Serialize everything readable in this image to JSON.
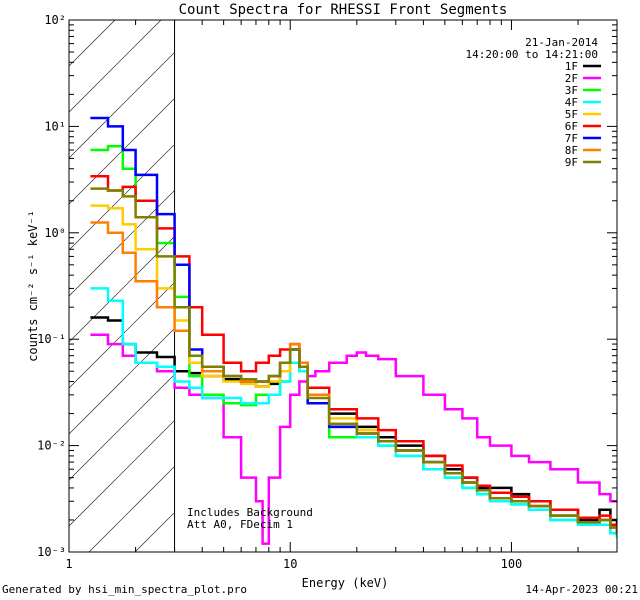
{
  "chart_data": {
    "type": "line",
    "title": "Count Spectra for RHESSI Front Segments",
    "xlabel": "Energy (keV)",
    "ylabel": "counts cm⁻² s⁻¹ keV⁻¹",
    "xscale": "log",
    "yscale": "log",
    "xlim": [
      1,
      300
    ],
    "ylim": [
      0.001,
      100
    ],
    "x_ticks": [
      {
        "value": 1,
        "label": "1"
      },
      {
        "value": 10,
        "label": "10"
      },
      {
        "value": 100,
        "label": "100"
      }
    ],
    "y_ticks": [
      {
        "value": 0.001,
        "label": "10⁻³"
      },
      {
        "value": 0.01,
        "label": "10⁻²"
      },
      {
        "value": 0.1,
        "label": "10⁻¹"
      },
      {
        "value": 1,
        "label": "10⁰"
      },
      {
        "value": 10,
        "label": "10¹"
      },
      {
        "value": 100,
        "label": "10²"
      }
    ],
    "date": "21-Jan-2014",
    "time_range": "14:20:00 to 14:21:00",
    "hatched_region_max_kev": 3,
    "annotation_lines": [
      "Includes Background",
      "Att A0, FDecim 1"
    ],
    "legend_position": "top-right",
    "series": [
      {
        "name": "1F",
        "color": "#000000",
        "x": [
          1.25,
          1.5,
          1.75,
          2,
          2.5,
          3,
          3.5,
          4,
          5,
          6,
          7,
          8,
          9,
          10,
          11,
          12,
          15,
          20,
          25,
          30,
          40,
          50,
          60,
          70,
          80,
          100,
          120,
          150,
          200,
          250,
          280,
          300
        ],
        "y": [
          0.16,
          0.15,
          0.09,
          0.075,
          0.068,
          0.05,
          0.048,
          0.045,
          0.042,
          0.04,
          0.036,
          0.038,
          0.05,
          0.08,
          0.055,
          0.03,
          0.02,
          0.015,
          0.012,
          0.01,
          0.008,
          0.006,
          0.005,
          0.004,
          0.004,
          0.0035,
          0.003,
          0.0025,
          0.002,
          0.0025,
          0.002,
          0.0015
        ]
      },
      {
        "name": "2F",
        "color": "#ff00ff",
        "x": [
          1.25,
          1.5,
          1.75,
          2,
          2.5,
          3,
          3.5,
          4,
          5,
          6,
          7,
          7.5,
          8,
          9,
          10,
          11,
          12,
          13,
          15,
          18,
          20,
          22,
          25,
          30,
          40,
          50,
          60,
          70,
          80,
          100,
          120,
          150,
          200,
          250,
          280,
          300
        ],
        "y": [
          0.11,
          0.09,
          0.07,
          0.06,
          0.05,
          0.035,
          0.03,
          0.028,
          0.012,
          0.005,
          0.003,
          0.0012,
          0.005,
          0.015,
          0.03,
          0.04,
          0.045,
          0.05,
          0.06,
          0.07,
          0.075,
          0.07,
          0.065,
          0.045,
          0.03,
          0.022,
          0.018,
          0.012,
          0.01,
          0.008,
          0.007,
          0.006,
          0.0045,
          0.0035,
          0.003,
          0.003
        ]
      },
      {
        "name": "3F",
        "color": "#00ff00",
        "x": [
          1.25,
          1.5,
          1.75,
          2,
          2.5,
          3,
          3.5,
          4,
          5,
          6,
          7,
          8,
          9,
          10,
          11,
          12,
          15,
          20,
          25,
          30,
          40,
          50,
          60,
          70,
          80,
          100,
          120,
          150,
          200,
          250,
          280,
          300
        ],
        "y": [
          6,
          6.5,
          4,
          2,
          0.8,
          0.25,
          0.045,
          0.03,
          0.025,
          0.024,
          0.03,
          0.03,
          0.04,
          0.06,
          0.05,
          0.025,
          0.012,
          0.012,
          0.01,
          0.008,
          0.006,
          0.005,
          0.004,
          0.0035,
          0.003,
          0.0028,
          0.0025,
          0.002,
          0.0018,
          0.0018,
          0.0015,
          0.0014
        ]
      },
      {
        "name": "4F",
        "color": "#00ffff",
        "x": [
          1.25,
          1.5,
          1.75,
          2,
          2.5,
          3,
          3.5,
          4,
          5,
          6,
          7,
          8,
          9,
          10,
          11,
          12,
          15,
          20,
          25,
          30,
          40,
          50,
          60,
          70,
          80,
          100,
          120,
          150,
          200,
          250,
          280,
          300
        ],
        "y": [
          0.3,
          0.23,
          0.09,
          0.06,
          0.055,
          0.04,
          0.035,
          0.028,
          0.028,
          0.025,
          0.025,
          0.03,
          0.04,
          0.06,
          0.05,
          0.025,
          0.015,
          0.012,
          0.01,
          0.008,
          0.006,
          0.005,
          0.004,
          0.0035,
          0.003,
          0.0028,
          0.0025,
          0.002,
          0.0018,
          0.0018,
          0.0015,
          0.0014
        ]
      },
      {
        "name": "5F",
        "color": "#ffcc00",
        "x": [
          1.25,
          1.5,
          1.75,
          2,
          2.5,
          3,
          3.5,
          4,
          5,
          6,
          7,
          8,
          9,
          10,
          11,
          12,
          15,
          20,
          25,
          30,
          40,
          50,
          60,
          70,
          80,
          100,
          120,
          150,
          200,
          250,
          280,
          300
        ],
        "y": [
          1.8,
          1.7,
          1.2,
          0.7,
          0.3,
          0.15,
          0.06,
          0.045,
          0.04,
          0.038,
          0.036,
          0.04,
          0.05,
          0.08,
          0.055,
          0.03,
          0.018,
          0.014,
          0.011,
          0.009,
          0.007,
          0.0055,
          0.0045,
          0.0038,
          0.0032,
          0.003,
          0.0027,
          0.0022,
          0.0019,
          0.002,
          0.0017,
          0.0015
        ]
      },
      {
        "name": "6F",
        "color": "#ff0000",
        "x": [
          1.25,
          1.5,
          1.75,
          2,
          2.5,
          3,
          3.5,
          4,
          5,
          6,
          7,
          8,
          9,
          10,
          11,
          12,
          15,
          20,
          25,
          30,
          40,
          50,
          60,
          70,
          80,
          100,
          120,
          150,
          200,
          250,
          280,
          300
        ],
        "y": [
          3.4,
          2.5,
          2.7,
          2,
          1.1,
          0.6,
          0.2,
          0.11,
          0.06,
          0.05,
          0.06,
          0.07,
          0.08,
          0.09,
          0.06,
          0.035,
          0.022,
          0.018,
          0.014,
          0.011,
          0.008,
          0.0065,
          0.005,
          0.0042,
          0.0036,
          0.0033,
          0.003,
          0.0025,
          0.0021,
          0.0022,
          0.0018,
          0.0016
        ]
      },
      {
        "name": "7F",
        "color": "#0000ff",
        "x": [
          1.25,
          1.5,
          1.75,
          2,
          2.5,
          3,
          3.5,
          4,
          5,
          6,
          7,
          8,
          9,
          10,
          11,
          12,
          15,
          20,
          25,
          30,
          40,
          50,
          60,
          70,
          80,
          100,
          120,
          150,
          200,
          250,
          280,
          300
        ],
        "y": [
          12,
          10,
          6,
          3.5,
          1.5,
          0.5,
          0.08,
          0.055,
          0.045,
          0.04,
          0.04,
          0.045,
          0.06,
          0.08,
          0.055,
          0.025,
          0.015,
          0.013,
          0.011,
          0.009,
          0.007,
          0.0055,
          0.0045,
          0.0038,
          0.0032,
          0.003,
          0.0027,
          0.0022,
          0.0019,
          0.002,
          0.0017,
          0.0015
        ]
      },
      {
        "name": "8F",
        "color": "#ff7f00",
        "x": [
          1.25,
          1.5,
          1.75,
          2,
          2.5,
          3,
          3.5,
          4,
          5,
          6,
          7,
          8,
          9,
          10,
          11,
          12,
          15,
          20,
          25,
          30,
          40,
          50,
          60,
          70,
          80,
          100,
          120,
          150,
          200,
          250,
          280,
          300
        ],
        "y": [
          1.25,
          1,
          0.65,
          0.35,
          0.2,
          0.12,
          0.07,
          0.05,
          0.045,
          0.04,
          0.04,
          0.045,
          0.06,
          0.09,
          0.06,
          0.03,
          0.016,
          0.013,
          0.011,
          0.009,
          0.007,
          0.0055,
          0.0045,
          0.0038,
          0.0032,
          0.003,
          0.0027,
          0.0022,
          0.0019,
          0.002,
          0.0017,
          0.0015
        ]
      },
      {
        "name": "9F",
        "color": "#808000",
        "x": [
          1.25,
          1.5,
          1.75,
          2,
          2.5,
          3,
          3.5,
          4,
          5,
          6,
          7,
          8,
          9,
          10,
          11,
          12,
          15,
          20,
          25,
          30,
          40,
          50,
          60,
          70,
          80,
          100,
          120,
          150,
          200,
          250,
          280,
          300
        ],
        "y": [
          2.6,
          2.5,
          2.2,
          1.4,
          0.6,
          0.2,
          0.07,
          0.055,
          0.045,
          0.042,
          0.04,
          0.045,
          0.06,
          0.08,
          0.055,
          0.028,
          0.016,
          0.013,
          0.011,
          0.009,
          0.007,
          0.0055,
          0.0045,
          0.0038,
          0.0032,
          0.003,
          0.0027,
          0.0022,
          0.0019,
          0.002,
          0.0017,
          0.0015
        ]
      }
    ]
  },
  "footer": {
    "left": "Generated by hsi_min_spectra_plot.pro",
    "right": "14-Apr-2023 00:21"
  }
}
